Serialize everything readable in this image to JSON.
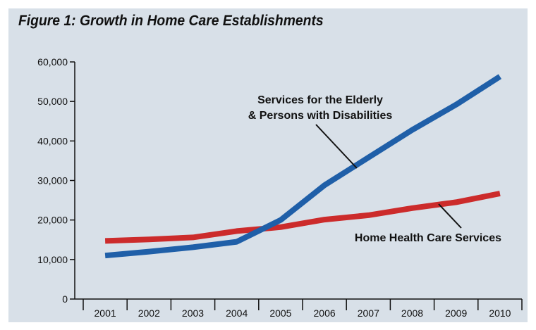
{
  "chart_data": {
    "type": "line",
    "title": "Figure 1: Growth in Home Care Establishments",
    "xlabel": "",
    "ylabel": "",
    "categories": [
      "2001",
      "2002",
      "2003",
      "2004",
      "2005",
      "2006",
      "2007",
      "2008",
      "2009",
      "2010"
    ],
    "ylim": [
      0,
      60000
    ],
    "yticks": [
      0,
      10000,
      20000,
      30000,
      40000,
      50000,
      60000
    ],
    "ytick_labels": [
      "0",
      "10,000",
      "20,000",
      "30,000",
      "40,000",
      "50,000",
      "60,000"
    ],
    "grid": false,
    "legend": "none",
    "series": [
      {
        "name": "Services for the Elderly & Persons with Disabilities",
        "color": "#1f5fa8",
        "values": [
          11000,
          12000,
          13100,
          14500,
          20000,
          28800,
          35800,
          42800,
          49200,
          56300
        ]
      },
      {
        "name": "Home Health Care Services",
        "color": "#cc2b2b",
        "values": [
          14700,
          15100,
          15600,
          17200,
          18200,
          20100,
          21200,
          23000,
          24500,
          26700
        ]
      }
    ],
    "annotations": [
      {
        "text_lines": [
          "Services for the Elderly",
          "& Persons with Disabilities"
        ],
        "series": 0
      },
      {
        "text_lines": [
          "Home Health Care Services"
        ],
        "series": 1
      }
    ]
  }
}
